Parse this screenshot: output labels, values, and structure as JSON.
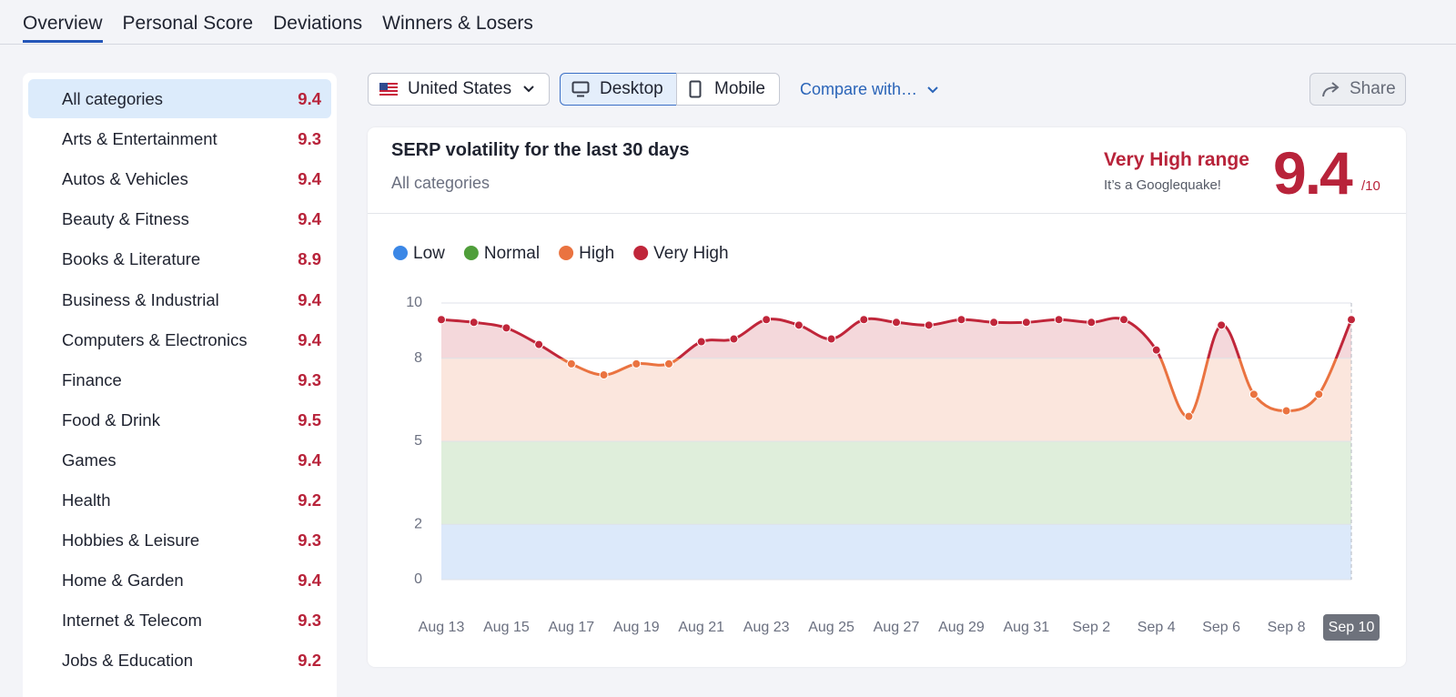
{
  "tabs": [
    "Overview",
    "Personal Score",
    "Deviations",
    "Winners & Losers"
  ],
  "sidebar": {
    "items": [
      {
        "name": "All categories",
        "score": 9.4
      },
      {
        "name": "Arts & Entertainment",
        "score": 9.3
      },
      {
        "name": "Autos & Vehicles",
        "score": 9.4
      },
      {
        "name": "Beauty & Fitness",
        "score": 9.4
      },
      {
        "name": "Books & Literature",
        "score": 8.9
      },
      {
        "name": "Business & Industrial",
        "score": 9.4
      },
      {
        "name": "Computers & Electronics",
        "score": 9.4
      },
      {
        "name": "Finance",
        "score": 9.3
      },
      {
        "name": "Food & Drink",
        "score": 9.5
      },
      {
        "name": "Games",
        "score": 9.4
      },
      {
        "name": "Health",
        "score": 9.2
      },
      {
        "name": "Hobbies & Leisure",
        "score": 9.3
      },
      {
        "name": "Home & Garden",
        "score": 9.4
      },
      {
        "name": "Internet & Telecom",
        "score": 9.3
      },
      {
        "name": "Jobs & Education",
        "score": 9.2
      }
    ]
  },
  "controls": {
    "country": "United States",
    "devices": [
      "Desktop",
      "Mobile"
    ],
    "compare": "Compare with…",
    "share": "Share"
  },
  "panel": {
    "title": "SERP volatility for the last 30 days",
    "subtitle": "All categories",
    "range_label": "Very High range",
    "range_note": "It’s a Googlequake!",
    "score": 9.4,
    "score_suffix": "/10"
  },
  "chart_data": {
    "type": "line",
    "categories": [
      "Aug 13",
      null,
      "Aug 15",
      null,
      "Aug 17",
      null,
      "Aug 19",
      null,
      "Aug 21",
      null,
      "Aug 23",
      null,
      "Aug 25",
      null,
      "Aug 27",
      null,
      "Aug 29",
      null,
      "Aug 31",
      null,
      "Sep 2",
      null,
      "Sep 4",
      null,
      "Sep 6",
      null,
      "Sep 8",
      null,
      "Sep 10"
    ],
    "values": [
      9.4,
      9.3,
      9.1,
      8.5,
      7.8,
      7.4,
      7.8,
      7.8,
      8.6,
      8.7,
      9.4,
      9.2,
      8.7,
      9.4,
      9.3,
      9.2,
      9.4,
      9.3,
      9.3,
      9.4,
      9.3,
      9.4,
      8.3,
      5.9,
      9.2,
      6.7,
      6.1,
      6.7,
      9.4
    ],
    "bands": [
      {
        "name": "Low",
        "color": "#3b87e6",
        "from": 0,
        "to": 2
      },
      {
        "name": "Normal",
        "color": "#4f9e3a",
        "from": 2,
        "to": 5
      },
      {
        "name": "High",
        "color": "#ea7340",
        "from": 5,
        "to": 8
      },
      {
        "name": "Very High",
        "color": "#c0263a",
        "from": 8,
        "to": 10
      }
    ],
    "ylim": [
      0,
      10
    ],
    "yticks": [
      0,
      2,
      5,
      8,
      10
    ],
    "grid": true
  }
}
